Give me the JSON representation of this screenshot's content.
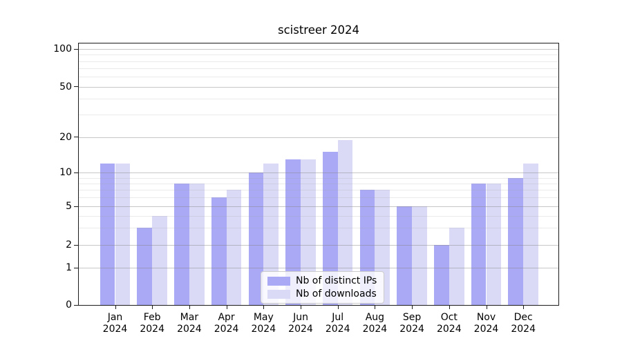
{
  "chart_data": {
    "type": "bar",
    "title": "scistreer 2024",
    "categories": [
      "Jan",
      "Feb",
      "Mar",
      "Apr",
      "May",
      "Jun",
      "Jul",
      "Aug",
      "Sep",
      "Oct",
      "Nov",
      "Dec"
    ],
    "category_year": "2024",
    "series": [
      {
        "name": "Nb of distinct IPs",
        "color": "#a9a9f5",
        "values": [
          12,
          3,
          8,
          6,
          10,
          13,
          15,
          7,
          5,
          2,
          8,
          9
        ]
      },
      {
        "name": "Nb of downloads",
        "color": "#dadaf7",
        "values": [
          12,
          4,
          8,
          7,
          12,
          13,
          19,
          7,
          5,
          3,
          8,
          12
        ]
      }
    ],
    "xlabel": "",
    "ylabel": "",
    "yaxis": {
      "scale": "log-like with zero baseline",
      "ticks": [
        0,
        1,
        2,
        5,
        10,
        20,
        50,
        100
      ],
      "minor_gridlines": [
        3,
        4,
        6,
        7,
        8,
        9,
        30,
        40,
        60,
        70,
        80,
        90
      ],
      "range": [
        0,
        108
      ]
    },
    "grid": true,
    "legend": {
      "position": "lower center",
      "entries": [
        "Nb of distinct IPs",
        "Nb of downloads"
      ]
    }
  }
}
